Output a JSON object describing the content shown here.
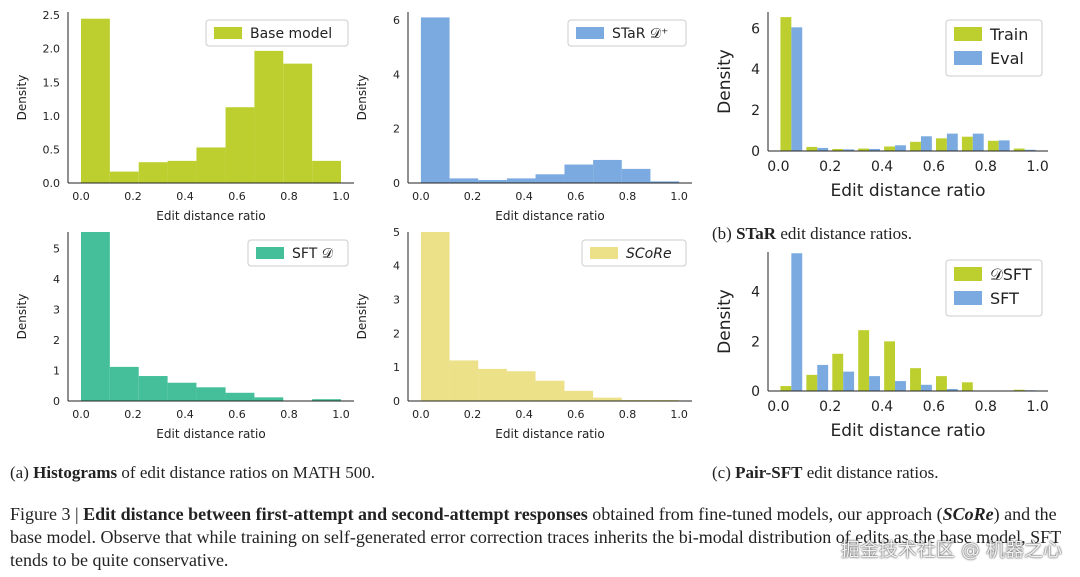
{
  "chart_data": [
    {
      "id": "a1",
      "type": "bar",
      "xlabel": "Edit distance ratio",
      "ylabel": "Density",
      "xlim": [
        -0.05,
        1.05
      ],
      "ylim": [
        0,
        2.55
      ],
      "xticks": [
        "0.0",
        "0.2",
        "0.4",
        "0.6",
        "0.8",
        "1.0"
      ],
      "xtick_values": [
        0,
        0.2,
        0.4,
        0.6,
        0.8,
        1.0
      ],
      "yticks": [
        "0.0",
        "0.5",
        "1.0",
        "1.5",
        "2.0",
        "2.5"
      ],
      "ytick_values": [
        0,
        0.5,
        1,
        1.5,
        2,
        2.5
      ],
      "legend": "top-right",
      "series": [
        {
          "name": "Base model",
          "color": "#bccf2e",
          "bin_edges": [
            0,
            0.111,
            0.222,
            0.333,
            0.444,
            0.556,
            0.667,
            0.778,
            0.889,
            1.0
          ],
          "values": [
            2.45,
            0.17,
            0.31,
            0.33,
            0.53,
            1.13,
            1.97,
            1.78,
            0.33
          ]
        }
      ]
    },
    {
      "id": "a2",
      "type": "bar",
      "xlabel": "Edit distance ratio",
      "ylabel": "Density",
      "xlim": [
        -0.05,
        1.05
      ],
      "ylim": [
        0,
        6.3
      ],
      "xticks": [
        "0.0",
        "0.2",
        "0.4",
        "0.6",
        "0.8",
        "1.0"
      ],
      "xtick_values": [
        0,
        0.2,
        0.4,
        0.6,
        0.8,
        1.0
      ],
      "yticks": [
        "0",
        "2",
        "4",
        "6"
      ],
      "ytick_values": [
        0,
        2,
        4,
        6
      ],
      "legend": "top-right",
      "series": [
        {
          "name": "STaR 𝒟⁺",
          "color": "#7aaadf",
          "bin_edges": [
            0,
            0.111,
            0.222,
            0.333,
            0.444,
            0.556,
            0.667,
            0.778,
            0.889,
            1.0
          ],
          "values": [
            6.1,
            0.17,
            0.11,
            0.17,
            0.32,
            0.68,
            0.85,
            0.52,
            0.06
          ]
        }
      ]
    },
    {
      "id": "a3",
      "type": "bar",
      "xlabel": "Edit distance ratio",
      "ylabel": "Density",
      "xlim": [
        -0.05,
        1.05
      ],
      "ylim": [
        0,
        5.55
      ],
      "xticks": [
        "0.0",
        "0.2",
        "0.4",
        "0.6",
        "0.8",
        "1.0"
      ],
      "xtick_values": [
        0,
        0.2,
        0.4,
        0.6,
        0.8,
        1.0
      ],
      "yticks": [
        "0",
        "1",
        "2",
        "3",
        "4",
        "5"
      ],
      "ytick_values": [
        0,
        1,
        2,
        3,
        4,
        5
      ],
      "legend": "top-right",
      "series": [
        {
          "name": "SFT 𝒟",
          "color": "#45bf99",
          "bin_edges": [
            0,
            0.111,
            0.222,
            0.333,
            0.444,
            0.556,
            0.667,
            0.778,
            0.889,
            1.0
          ],
          "values": [
            5.55,
            1.12,
            0.82,
            0.6,
            0.45,
            0.27,
            0.12,
            0,
            0.06
          ]
        }
      ]
    },
    {
      "id": "a4",
      "type": "bar",
      "xlabel": "Edit distance ratio",
      "ylabel": "Density",
      "xlim": [
        -0.05,
        1.05
      ],
      "ylim": [
        0,
        5.0
      ],
      "xticks": [
        "0.0",
        "0.2",
        "0.4",
        "0.6",
        "0.8",
        "1.0"
      ],
      "xtick_values": [
        0,
        0.2,
        0.4,
        0.6,
        0.8,
        1.0
      ],
      "yticks": [
        "0",
        "1",
        "2",
        "3",
        "4",
        "5"
      ],
      "ytick_values": [
        0,
        1,
        2,
        3,
        4,
        5
      ],
      "legend": "top-right",
      "series": [
        {
          "name": "SCoRe",
          "color": "#ece088",
          "bin_edges": [
            0,
            0.111,
            0.222,
            0.333,
            0.444,
            0.556,
            0.667,
            0.778,
            0.889,
            1.0
          ],
          "values": [
            5.0,
            1.2,
            0.95,
            0.88,
            0.6,
            0.3,
            0.1,
            0.03,
            0.03
          ]
        }
      ]
    },
    {
      "id": "b",
      "type": "bar",
      "xlabel": "Edit distance ratio",
      "ylabel": "Density",
      "xlim": [
        -0.04,
        1.04
      ],
      "ylim": [
        0,
        6.8
      ],
      "xticks": [
        "0.0",
        "0.2",
        "0.4",
        "0.6",
        "0.8",
        "1.0"
      ],
      "xtick_values": [
        0,
        0.2,
        0.4,
        0.6,
        0.8,
        1.0
      ],
      "yticks": [
        "0",
        "2",
        "4",
        "6"
      ],
      "ytick_values": [
        0,
        2,
        4,
        6
      ],
      "legend": "top-right",
      "categories": [
        0.05,
        0.15,
        0.25,
        0.35,
        0.45,
        0.55,
        0.65,
        0.75,
        0.85,
        0.95
      ],
      "series": [
        {
          "name": "Train",
          "color": "#bccf2e",
          "values": [
            6.55,
            0.2,
            0.1,
            0.12,
            0.22,
            0.45,
            0.62,
            0.7,
            0.5,
            0.12
          ]
        },
        {
          "name": "Eval",
          "color": "#7aaadf",
          "values": [
            6.05,
            0.15,
            0.08,
            0.1,
            0.28,
            0.72,
            0.85,
            0.85,
            0.52,
            0.06
          ]
        }
      ]
    },
    {
      "id": "c",
      "type": "bar",
      "xlabel": "Edit distance ratio",
      "ylabel": "Density",
      "xlim": [
        -0.04,
        1.04
      ],
      "ylim": [
        0,
        5.6
      ],
      "xticks": [
        "0.0",
        "0.2",
        "0.4",
        "0.6",
        "0.8",
        "1.0"
      ],
      "xtick_values": [
        0,
        0.2,
        0.4,
        0.6,
        0.8,
        1.0
      ],
      "yticks": [
        "0",
        "2",
        "4"
      ],
      "ytick_values": [
        0,
        2,
        4
      ],
      "legend": "top-right",
      "categories": [
        0.05,
        0.15,
        0.25,
        0.35,
        0.45,
        0.55,
        0.65,
        0.75,
        0.85,
        0.95
      ],
      "series": [
        {
          "name": "𝒟SFT",
          "color": "#bccf2e",
          "values": [
            0.2,
            0.65,
            1.5,
            2.45,
            2.0,
            0.92,
            0.6,
            0.35,
            0,
            0.05
          ]
        },
        {
          "name": "SFT",
          "color": "#7aaadf",
          "values": [
            5.55,
            1.05,
            0.78,
            0.6,
            0.4,
            0.25,
            0.08,
            0.02,
            0.02,
            0.03
          ]
        }
      ]
    }
  ],
  "captions": {
    "a_label": "(a)",
    "a_bold": "Histograms",
    "a_rest": " of edit distance ratios on MATH 500.",
    "b_label": "(b)",
    "b_bold": "STaR",
    "b_rest": " edit distance ratios.",
    "c_label": "(c)",
    "c_bold": "Pair-SFT",
    "c_rest": " edit distance ratios."
  },
  "figure_caption": {
    "prefix": "Figure 3 | ",
    "bold": "Edit distance between first-attempt and second-attempt responses",
    "part1": " obtained from fine-tuned models, our approach (",
    "bold_italic": "SCoRe",
    "part2": ") and the base model. Observe that while training on self-generated error correction traces inherits the bi-modal distribution of edits as the base model, SFT tends to be quite conservative."
  },
  "watermark": "掘金技术社区 @ 机器之心"
}
